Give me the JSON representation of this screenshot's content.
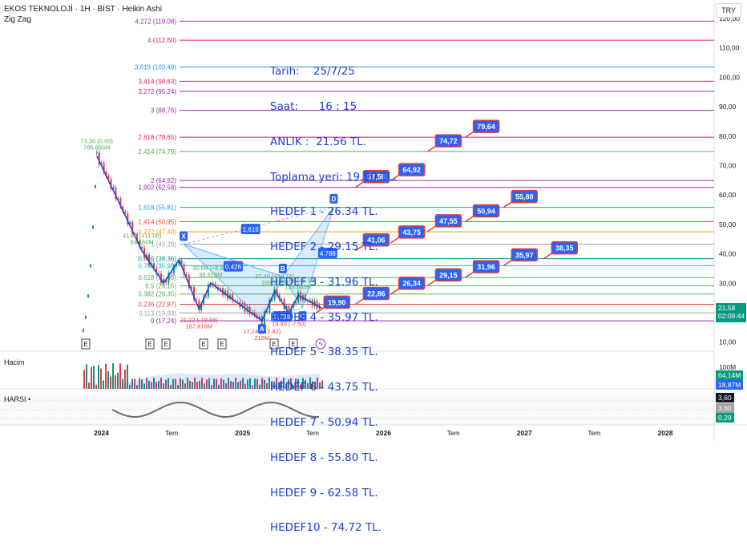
{
  "header": {
    "title": "EKOS TEKNOLOJİ · 1H · BIST · Heikin Ashi",
    "indicator": "Zig Zag",
    "currency": "TRY"
  },
  "annotation_lines": [
    "Tarih:    25/7/25",
    "Saat:      16 : 15",
    "ANLIK :  21.56 TL.",
    "Toplama yeri: 19.90 TL.",
    "HEDEF 1 - 26.34 TL.",
    "HEDEF 2 - 29.15 TL.",
    "HEDEF 3 - 31.96 TL.",
    "HEDEF 4 - 35.97 TL.",
    "HEDEF 5 - 38.35 TL.",
    "HEDEF 6 - 43.75 TL.",
    "HEDEF 7 - 50.94 TL.",
    "HEDEF 8 - 55.80 TL.",
    "HEDEF 9 - 62.58 TL.",
    "HEDEF10 - 74.72 TL."
  ],
  "chart_data": {
    "type": "line",
    "yaxis_ticks": [
      "120,00",
      "110,00",
      "100,00",
      "90,00",
      "80,00",
      "70,00",
      "60,00",
      "50,00",
      "40,00",
      "30,00",
      "20,00",
      "10,00"
    ],
    "yaxis_values": [
      120,
      110,
      100,
      90,
      80,
      70,
      60,
      50,
      40,
      30,
      20,
      10
    ],
    "xaxis_labels": [
      "2024",
      "Tem",
      "2025",
      "Tem",
      "2026",
      "Tem",
      "2027",
      "Tem",
      "2028"
    ],
    "xaxis_dates": [
      "2024-01",
      "2024-07",
      "2025-01",
      "2025-07",
      "2026-01",
      "2026-07",
      "2027-01",
      "2027-07",
      "2028-01"
    ],
    "last_price": "21,58",
    "countdown": "02:09:44",
    "fib_levels": [
      {
        "label": "4,272 (119,08)",
        "value": 119.08,
        "color": "#9c27b0"
      },
      {
        "label": "4 (112,60)",
        "value": 112.6,
        "color": "#e91e63"
      },
      {
        "label": "3,618 (103,49)",
        "value": 103.49,
        "color": "#2196f3"
      },
      {
        "label": "3,414 (98,63)",
        "value": 98.63,
        "color": "#e91e63"
      },
      {
        "label": "3,272 (95,24)",
        "value": 95.24,
        "color": "#9c27b0"
      },
      {
        "label": "3 (88,76)",
        "value": 88.76,
        "color": "#9c27b0"
      },
      {
        "label": "2,618 (79,65)",
        "value": 79.65,
        "color": "#e91e63"
      },
      {
        "label": "2,414 (74,79)",
        "value": 74.79,
        "color": "#4caf50"
      },
      {
        "label": "2 (64,92)",
        "value": 64.92,
        "color": "#9c27b0"
      },
      {
        "label": "1,902 (62,58)",
        "value": 62.58,
        "color": "#9c27b0"
      },
      {
        "label": "1,618 (55,81)",
        "value": 55.81,
        "color": "#2196f3"
      },
      {
        "label": "1,414 (50,95)",
        "value": 50.95,
        "color": "#f44336"
      },
      {
        "label": "1,272 (47,48)",
        "value": 47.48,
        "color": "#ff9800"
      },
      {
        "label": "1 (43,29)",
        "value": 43.29,
        "color": "#9e9e9e"
      },
      {
        "label": "0,886 (38,36)",
        "value": 38.36,
        "color": "#009688"
      },
      {
        "label": "0,786 (35,98)",
        "value": 35.98,
        "color": "#00bcd4"
      },
      {
        "label": "0,618 (31,96)",
        "value": 31.96,
        "color": "#4caf50"
      },
      {
        "label": "0,5 (29,15)",
        "value": 29.15,
        "color": "#4caf50"
      },
      {
        "label": "0,382 (26,35)",
        "value": 26.35,
        "color": "#4caf50"
      },
      {
        "label": "0,236 (22,87)",
        "value": 22.87,
        "color": "#f44336"
      },
      {
        "label": "0,113 (19,93)",
        "value": 19.93,
        "color": "#9e9e9e"
      },
      {
        "label": "0 (17,24)",
        "value": 17.24,
        "color": "#9c27b0"
      }
    ],
    "targets": [
      {
        "label": "19,90",
        "value": 19.9,
        "date": "2025-07-10"
      },
      {
        "label": "22,86",
        "value": 22.86,
        "date": "2025-10-20"
      },
      {
        "label": "26,34",
        "value": 26.34,
        "date": "2026-01-20"
      },
      {
        "label": "29,15",
        "value": 29.15,
        "date": "2026-04-25"
      },
      {
        "label": "31,96",
        "value": 31.96,
        "date": "2026-08-01"
      },
      {
        "label": "35,97",
        "value": 35.97,
        "date": "2026-11-08"
      },
      {
        "label": "38,35",
        "value": 38.35,
        "date": "2027-02-20"
      },
      {
        "label": "41,06",
        "value": 41.06,
        "date": "2025-10-20"
      },
      {
        "label": "43,75",
        "value": 43.75,
        "date": "2026-01-20"
      },
      {
        "label": "47,55",
        "value": 47.55,
        "date": "2026-04-25"
      },
      {
        "label": "50,94",
        "value": 50.94,
        "date": "2026-08-01"
      },
      {
        "label": "55,80",
        "value": 55.8,
        "date": "2026-11-08"
      },
      {
        "label": "62,58",
        "value": 62.58,
        "date": "2025-10-20"
      },
      {
        "label": "64,92",
        "value": 64.92,
        "date": "2026-01-20"
      },
      {
        "label": "74,72",
        "value": 74.72,
        "date": "2026-04-25"
      },
      {
        "label": "79,64",
        "value": 79.64,
        "date": "2026-08-01"
      }
    ],
    "pattern_points": [
      {
        "label": "X",
        "date": "2024-08-01",
        "value": 43.3
      },
      {
        "label": "A",
        "date": "2025-02-20",
        "value": 17.24
      },
      {
        "label": "B",
        "date": "2025-04-15",
        "value": 32.3
      },
      {
        "label": "C",
        "date": "2025-06-05",
        "value": 21.6
      },
      {
        "label": "D",
        "date": "2025-08-25",
        "value": 56.0
      }
    ],
    "ratio_labels": [
      "1,618",
      "0,426",
      "0,738",
      "4,788"
    ],
    "zigzag": [
      {
        "date": "2023-12-20",
        "value": 73.3
      },
      {
        "date": "2024-04-15",
        "value": 41.06
      },
      {
        "date": "2024-06-10",
        "value": 30.0
      },
      {
        "date": "2024-07-20",
        "value": 38.0
      },
      {
        "date": "2024-09-10",
        "value": 21.22
      },
      {
        "date": "2024-10-10",
        "value": 30.06
      },
      {
        "date": "2025-02-20",
        "value": 17.24
      },
      {
        "date": "2025-03-25",
        "value": 27.4
      },
      {
        "date": "2025-05-01",
        "value": 19.9
      },
      {
        "date": "2025-05-25",
        "value": 25.88
      },
      {
        "date": "2025-07-25",
        "value": 21.56
      }
    ],
    "zigzag_labels": [
      {
        "text": "73.30 (0.00)",
        "sub": "785.685M",
        "date": "2023-12-20",
        "value": 73.3,
        "color": "#4caf50"
      },
      {
        "text": "41.06 (+11.00)",
        "sub": "84.466M",
        "date": "2024-04-15",
        "value": 41.06,
        "color": "#4caf50"
      },
      {
        "text": "30.06 (+8.84)",
        "sub": "36.926M",
        "date": "2024-10-10",
        "value": 30.06,
        "color": "#4caf50"
      },
      {
        "text": "27.40 (+10.16)",
        "sub": "105.308M",
        "date": "2025-03-25",
        "value": 27.4,
        "color": "#4caf50"
      },
      {
        "text": "25.88 (+5.98)",
        "sub": "158.885M",
        "date": "2025-05-25",
        "value": 25.88,
        "color": "#4caf50"
      },
      {
        "text": "21.22 (-19.86)",
        "sub": "187.616M",
        "date": "2024-09-10",
        "value": 21.22,
        "color": "#f44336"
      },
      {
        "text": "19.90 (-7.50)",
        "sub": "",
        "date": "2025-05-01",
        "value": 19.9,
        "color": "#f44336"
      },
      {
        "text": "17.24 (-12.82)",
        "sub": "216M",
        "date": "2025-02-20",
        "value": 17.24,
        "color": "#f44336"
      }
    ],
    "volume": {
      "label": "Hacim",
      "axis_label": "100M",
      "last": "64,14M",
      "ma": "18,87M"
    },
    "harsi": {
      "label": "HARSI •",
      "v1": "3,60",
      "v2": "3,60",
      "v3": "0,29"
    },
    "events": [
      "E",
      "E",
      "E",
      "E",
      "E",
      "E",
      "E"
    ]
  }
}
